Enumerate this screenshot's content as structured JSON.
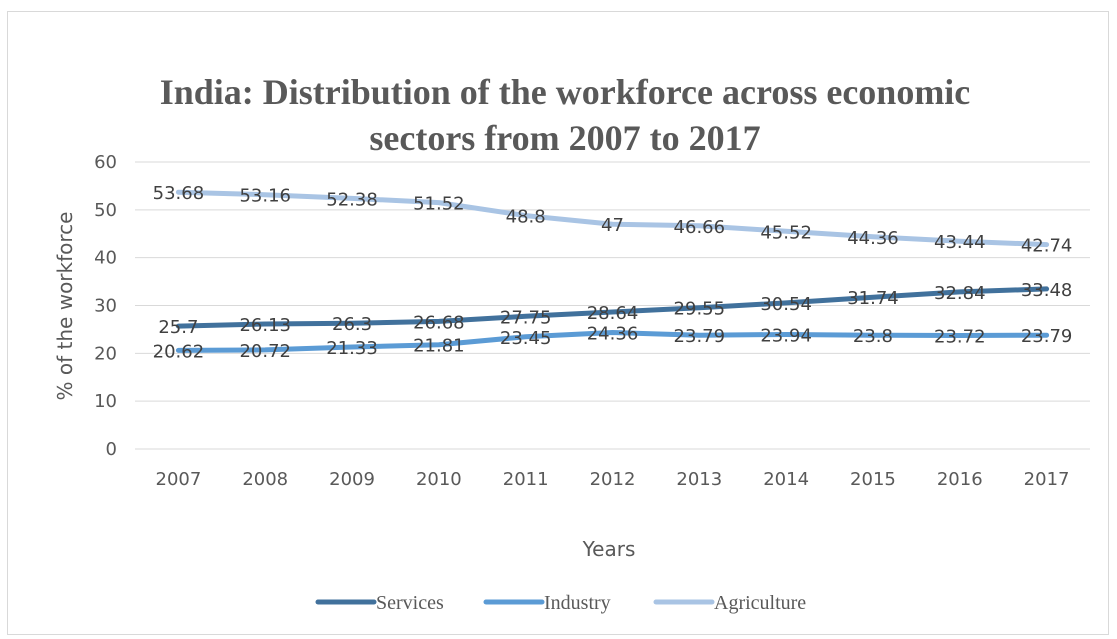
{
  "chart_data": {
    "type": "line",
    "title_line1": "India: Distribution of the workforce across economic",
    "title_line2": "sectors from 2007 to 2017",
    "xlabel": "Years",
    "ylabel": "% of the workforce",
    "ylim": [
      0,
      60
    ],
    "yticks": [
      "0",
      "10",
      "20",
      "30",
      "40",
      "50",
      "60"
    ],
    "categories": [
      "2007",
      "2008",
      "2009",
      "2010",
      "2011",
      "2012",
      "2013",
      "2014",
      "2015",
      "2016",
      "2017"
    ],
    "grid": true,
    "legend_position": "bottom",
    "series": [
      {
        "name": "Services",
        "color": "#41719c",
        "values": [
          25.7,
          26.13,
          26.3,
          26.68,
          27.75,
          28.64,
          29.55,
          30.54,
          31.74,
          32.84,
          33.48
        ],
        "labels": [
          "25.7",
          "26.13",
          "26.3",
          "26.68",
          "27.75",
          "28.64",
          "29.55",
          "30.54",
          "31.74",
          "32.84",
          "33.48"
        ]
      },
      {
        "name": "Industry",
        "color": "#5b9bd5",
        "values": [
          20.62,
          20.72,
          21.33,
          21.81,
          23.45,
          24.36,
          23.79,
          23.94,
          23.8,
          23.72,
          23.79
        ],
        "labels": [
          "20.62",
          "20.72",
          "21.33",
          "21.81",
          "23.45",
          "24.36",
          "23.79",
          "23.94",
          "23.8",
          "23.72",
          "23.79"
        ]
      },
      {
        "name": "Agriculture",
        "color": "#a9c4e4",
        "values": [
          53.68,
          53.16,
          52.38,
          51.52,
          48.8,
          47,
          46.66,
          45.52,
          44.36,
          43.44,
          42.74
        ],
        "labels": [
          "53.68",
          "53.16",
          "52.38",
          "51.52",
          "48.8",
          "47",
          "46.66",
          "45.52",
          "44.36",
          "43.44",
          "42.74"
        ]
      }
    ]
  }
}
